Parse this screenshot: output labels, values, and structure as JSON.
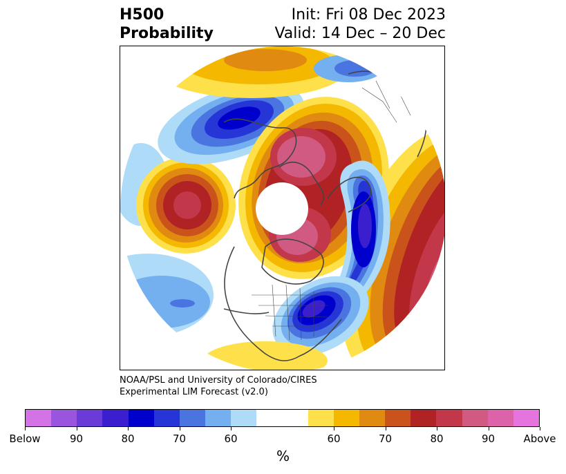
{
  "title": {
    "left_line1": "H500",
    "left_line2": "Probability",
    "right_line1": "Init: Fri 08 Dec 2023",
    "right_line2": "Valid: 14 Dec – 20 Dec"
  },
  "credit": {
    "line1": "NOAA/PSL and University of Colorado/CIRES",
    "line2": "Experimental LIM Forecast (v2.0)"
  },
  "colorbar": {
    "unit": "%",
    "tick_labels": [
      "Below",
      "90",
      "80",
      "70",
      "60",
      "60",
      "70",
      "80",
      "90",
      "Above"
    ],
    "below_colors": [
      "#d373e6",
      "#9955de",
      "#6b3bd9",
      "#3b1fcf",
      "#0000cc",
      "#2535d6",
      "#4a74e0",
      "#74afef",
      "#aedcf8"
    ],
    "neutral_color": "#ffffff",
    "above_colors": [
      "#fde04a",
      "#f4b800",
      "#e08a12",
      "#c9531b",
      "#b12224",
      "#c2374a",
      "#d05a81",
      "#dc63a9",
      "#e574de"
    ]
  },
  "map": {
    "projection": "north-polar-stereographic",
    "regions": [
      {
        "name": "pacific-positive-anomaly",
        "sign": "above"
      },
      {
        "name": "arctic-siberia-positive-anomaly",
        "sign": "above"
      },
      {
        "name": "canada-positive-anomaly",
        "sign": "above"
      },
      {
        "name": "atlantic-europe-positive-anomaly",
        "sign": "above"
      },
      {
        "name": "east-siberia-negative-anomaly",
        "sign": "below"
      },
      {
        "name": "greenland-atlantic-negative-anomaly",
        "sign": "below"
      },
      {
        "name": "eastern-us-negative-anomaly",
        "sign": "below"
      },
      {
        "name": "subtropical-pacific-negative-anomaly",
        "sign": "below"
      }
    ]
  }
}
